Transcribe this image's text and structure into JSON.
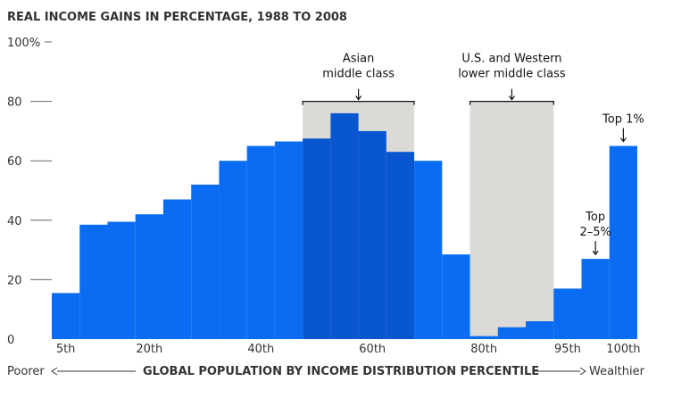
{
  "chart_data": {
    "type": "bar",
    "title": "REAL INCOME GAINS IN PERCENTAGE, 1988 TO 2008",
    "ylim": [
      0,
      100
    ],
    "y_ticks": [
      {
        "value": 100,
        "label": "100%"
      },
      {
        "value": 80,
        "label": "80"
      },
      {
        "value": 60,
        "label": "60"
      },
      {
        "value": 40,
        "label": "40"
      },
      {
        "value": 20,
        "label": "20"
      },
      {
        "value": 0,
        "label": "0"
      }
    ],
    "x_ticks": [
      {
        "pos": 1,
        "label": "5th"
      },
      {
        "pos": 4,
        "label": "20th"
      },
      {
        "pos": 8,
        "label": "40th"
      },
      {
        "pos": 12,
        "label": "60th"
      },
      {
        "pos": 16,
        "label": "80th"
      },
      {
        "pos": 19,
        "label": "95th"
      },
      {
        "pos": 21,
        "label": "100th"
      }
    ],
    "x_ranks": [
      1,
      2,
      3,
      4,
      5,
      6,
      7,
      8,
      9,
      10,
      11,
      12,
      13,
      14,
      15,
      16,
      17,
      18,
      19,
      20,
      21
    ],
    "values": [
      15.5,
      38.5,
      39.5,
      42,
      47,
      52,
      60,
      65,
      66.5,
      67.5,
      76,
      70,
      63,
      60,
      28.5,
      1,
      4,
      6,
      17,
      27,
      65
    ],
    "highlight_ranks": [
      10,
      11,
      12,
      13
    ],
    "bar_color": "#0a6cf2",
    "highlight_color": "#0957d0",
    "band_color": "#dcdad6",
    "grid": false,
    "annotations": {
      "asian": {
        "lines": [
          "Asian",
          "middle class"
        ],
        "from_rank": 10,
        "to_rank": 13
      },
      "western": {
        "lines": [
          "U.S. and Western",
          "lower middle class"
        ],
        "from_rank": 16,
        "to_rank": 18
      },
      "top25": {
        "lines": [
          "Top",
          "2–5%"
        ],
        "rank": 20
      },
      "top1": {
        "lines": [
          "Top 1%"
        ],
        "rank": 21
      }
    },
    "footer": {
      "left": "Poorer",
      "label": "GLOBAL POPULATION BY INCOME DISTRIBUTION PERCENTILE",
      "right": "Wealthier"
    }
  }
}
